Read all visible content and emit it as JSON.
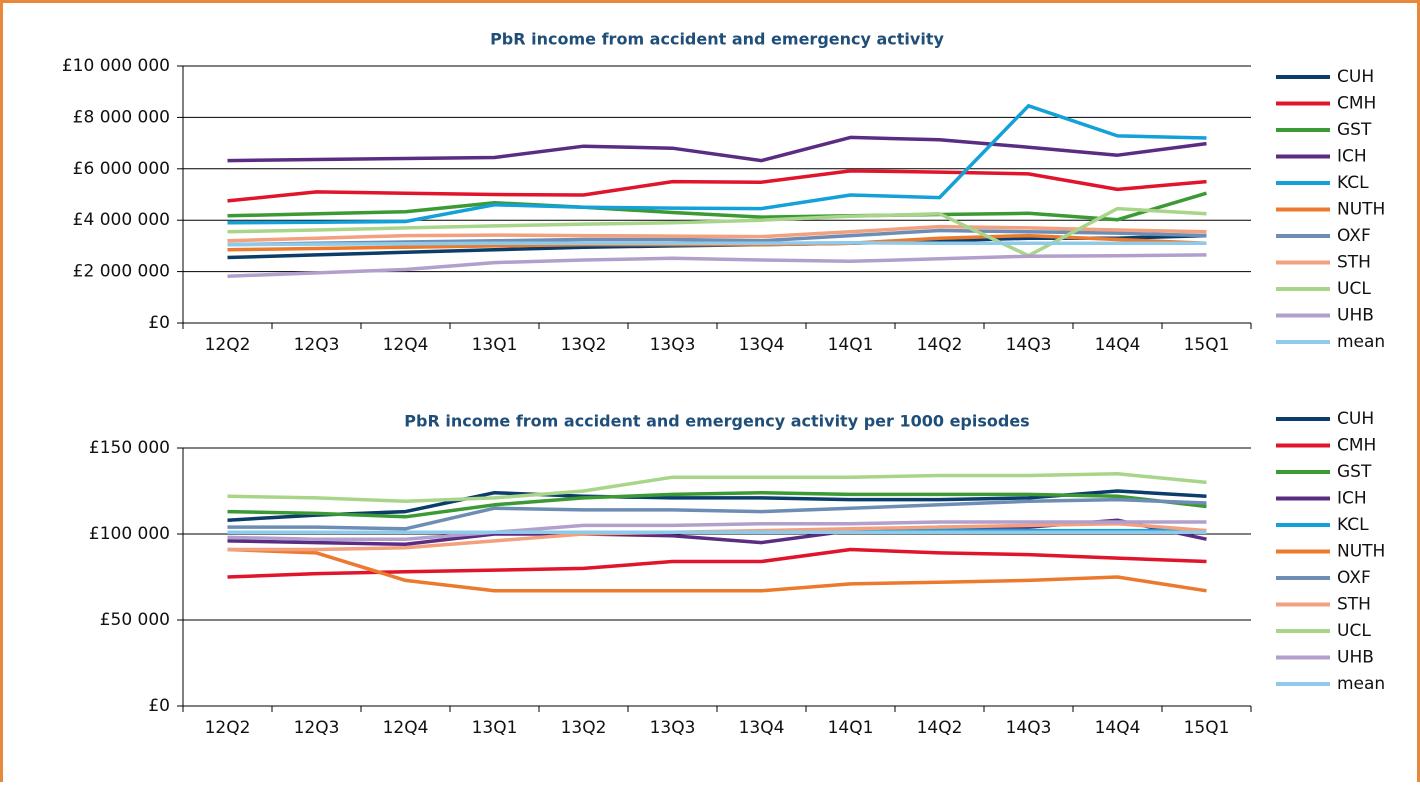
{
  "chart_data": [
    {
      "type": "line",
      "title": "PbR income from accident and emergency activity",
      "categories": [
        "12Q2",
        "12Q3",
        "12Q4",
        "13Q1",
        "13Q2",
        "13Q3",
        "13Q4",
        "14Q1",
        "14Q2",
        "14Q3",
        "14Q4",
        "15Q1"
      ],
      "ylim": [
        0,
        10000000
      ],
      "yticks": [
        {
          "value": 0,
          "label": "£0"
        },
        {
          "value": 2000000,
          "label": "£2 000 000"
        },
        {
          "value": 4000000,
          "label": "£4 000 000"
        },
        {
          "value": 6000000,
          "label": "£6 000 000"
        },
        {
          "value": 8000000,
          "label": "£8 000 000"
        },
        {
          "value": 10000000,
          "label": "£10 000 000"
        }
      ],
      "grid": true,
      "legend": "right",
      "series": [
        {
          "name": "CUH",
          "color": "#0b3d6b",
          "values": [
            2550000,
            2650000,
            2750000,
            2850000,
            2950000,
            3000000,
            3050000,
            3100000,
            3200000,
            3300000,
            3300000,
            3400000
          ]
        },
        {
          "name": "CMH",
          "color": "#e0142b",
          "values": [
            4750000,
            5100000,
            5050000,
            5000000,
            4980000,
            5500000,
            5480000,
            5920000,
            5870000,
            5800000,
            5200000,
            5500000
          ]
        },
        {
          "name": "GST",
          "color": "#3c9a35",
          "values": [
            4170000,
            4250000,
            4330000,
            4680000,
            4500000,
            4300000,
            4120000,
            4170000,
            4220000,
            4270000,
            4020000,
            5050000
          ]
        },
        {
          "name": "ICH",
          "color": "#5a2d82",
          "values": [
            6320000,
            6360000,
            6400000,
            6440000,
            6880000,
            6800000,
            6320000,
            7220000,
            7130000,
            6840000,
            6530000,
            6980000
          ]
        },
        {
          "name": "KCL",
          "color": "#14a0d8",
          "values": [
            3900000,
            3920000,
            3950000,
            4600000,
            4500000,
            4470000,
            4450000,
            4980000,
            4880000,
            8450000,
            7280000,
            7200000
          ]
        },
        {
          "name": "NUTH",
          "color": "#ec7a2e",
          "values": [
            2850000,
            2900000,
            2950000,
            3000000,
            3050000,
            3050000,
            3050000,
            3100000,
            3300000,
            3400000,
            3250000,
            3100000
          ]
        },
        {
          "name": "OXF",
          "color": "#6d8db5",
          "values": [
            3050000,
            3100000,
            3150000,
            3200000,
            3250000,
            3250000,
            3200000,
            3400000,
            3600000,
            3550000,
            3500000,
            3400000
          ]
        },
        {
          "name": "STH",
          "color": "#f2a07d",
          "values": [
            3200000,
            3300000,
            3400000,
            3420000,
            3400000,
            3380000,
            3360000,
            3550000,
            3750000,
            3700000,
            3620000,
            3550000
          ]
        },
        {
          "name": "UCL",
          "color": "#a8d58a",
          "values": [
            3550000,
            3620000,
            3700000,
            3780000,
            3850000,
            3900000,
            4000000,
            4150000,
            4250000,
            2620000,
            4450000,
            4250000
          ]
        },
        {
          "name": "UHB",
          "color": "#b29fcc",
          "values": [
            1820000,
            1950000,
            2080000,
            2350000,
            2450000,
            2520000,
            2450000,
            2400000,
            2500000,
            2600000,
            2620000,
            2650000
          ]
        },
        {
          "name": "mean",
          "color": "#8ecae9",
          "values": [
            3050000,
            3070000,
            3080000,
            3100000,
            3100000,
            3100000,
            3100000,
            3120000,
            3100000,
            3100000,
            3100000,
            3100000
          ]
        }
      ]
    },
    {
      "type": "line",
      "title": "PbR income from accident and emergency activity per 1000 episodes",
      "categories": [
        "12Q2",
        "12Q3",
        "12Q4",
        "13Q1",
        "13Q2",
        "13Q3",
        "13Q4",
        "14Q1",
        "14Q2",
        "14Q3",
        "14Q4",
        "15Q1"
      ],
      "ylim": [
        0,
        150000
      ],
      "yticks": [
        {
          "value": 0,
          "label": "£0"
        },
        {
          "value": 50000,
          "label": "£50 000"
        },
        {
          "value": 100000,
          "label": "£100 000"
        },
        {
          "value": 150000,
          "label": "£150 000"
        }
      ],
      "grid": true,
      "legend": "right",
      "series": [
        {
          "name": "CUH",
          "color": "#0b3d6b",
          "values": [
            108000,
            111000,
            113000,
            124000,
            122000,
            121000,
            121000,
            120000,
            120000,
            121000,
            125000,
            122000
          ]
        },
        {
          "name": "CMH",
          "color": "#e0142b",
          "values": [
            75000,
            77000,
            78000,
            79000,
            80000,
            84000,
            84000,
            91000,
            89000,
            88000,
            86000,
            84000
          ]
        },
        {
          "name": "GST",
          "color": "#3c9a35",
          "values": [
            113000,
            112000,
            110000,
            117000,
            121000,
            123000,
            124000,
            123000,
            123000,
            123000,
            122000,
            116000
          ]
        },
        {
          "name": "ICH",
          "color": "#5a2d82",
          "values": [
            96000,
            95000,
            94000,
            100000,
            100000,
            99000,
            95000,
            102000,
            104000,
            104000,
            108000,
            97000
          ]
        },
        {
          "name": "KCL",
          "color": "#14a0d8",
          "values": [
            101000,
            101000,
            101000,
            101000,
            101000,
            101000,
            101000,
            101000,
            102000,
            102000,
            102000,
            102000
          ]
        },
        {
          "name": "NUTH",
          "color": "#ec7a2e",
          "values": [
            91000,
            89000,
            73000,
            67000,
            67000,
            67000,
            67000,
            71000,
            72000,
            73000,
            75000,
            67000
          ]
        },
        {
          "name": "OXF",
          "color": "#6d8db5",
          "values": [
            104000,
            104000,
            103000,
            115000,
            114000,
            114000,
            113000,
            115000,
            117000,
            119000,
            120000,
            118000
          ]
        },
        {
          "name": "STH",
          "color": "#f2a07d",
          "values": [
            91000,
            91000,
            92000,
            96000,
            100000,
            101000,
            102000,
            103000,
            104000,
            105000,
            106000,
            102000
          ]
        },
        {
          "name": "UCL",
          "color": "#a8d58a",
          "values": [
            122000,
            121000,
            119000,
            121000,
            125000,
            133000,
            133000,
            133000,
            134000,
            134000,
            135000,
            130000
          ]
        },
        {
          "name": "UHB",
          "color": "#b29fcc",
          "values": [
            98000,
            97000,
            97000,
            101000,
            105000,
            105000,
            106000,
            106000,
            107000,
            107000,
            107000,
            107000
          ]
        },
        {
          "name": "mean",
          "color": "#8ecae9",
          "values": [
            101000,
            101000,
            101000,
            101000,
            101000,
            101000,
            101000,
            101000,
            101000,
            101000,
            101000,
            101000
          ]
        }
      ]
    }
  ]
}
